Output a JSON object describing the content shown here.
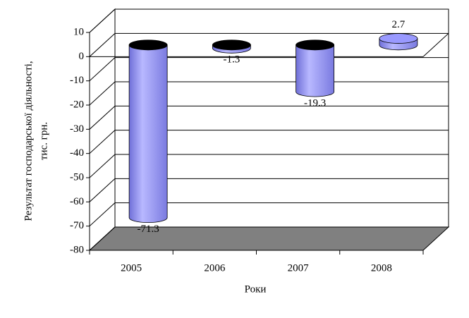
{
  "chart_data": {
    "type": "bar3d",
    "ylabel": [
      "Результат господарської діяльності,",
      "тис. грн."
    ],
    "xlabel": "Роки",
    "categories": [
      "2005",
      "2006",
      "2007",
      "2008"
    ],
    "values": [
      -71.3,
      -1.3,
      -19.3,
      2.7
    ],
    "color": "#9999ff",
    "ylim": [
      -80,
      10
    ],
    "yticks": [
      -80,
      -70,
      -60,
      -50,
      -40,
      -30,
      -20,
      -10,
      0,
      10
    ],
    "grid": true
  }
}
